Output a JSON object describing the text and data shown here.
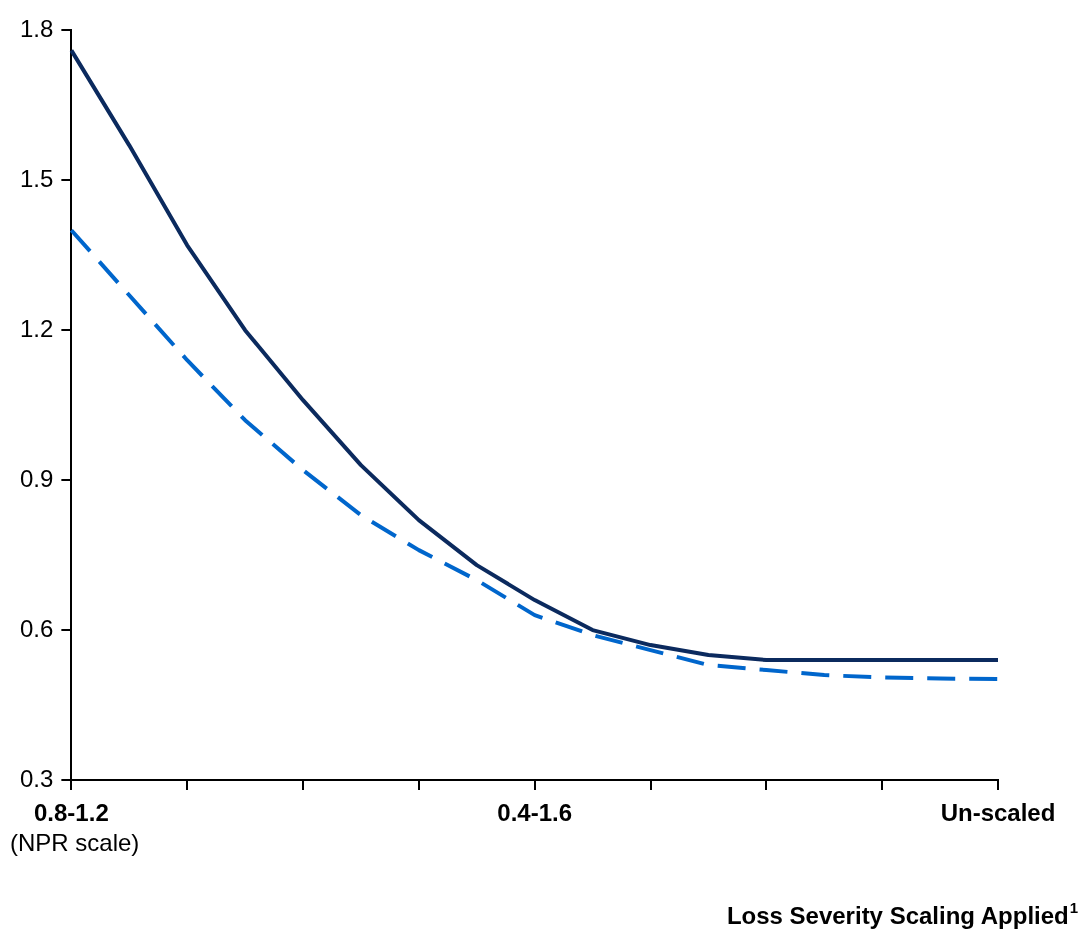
{
  "chart_data": {
    "type": "line",
    "xlabel": "Loss Severity Scaling Applied$^{1}$",
    "categories": [
      "0.8-1.2\n(NPR scale)",
      null,
      null,
      null,
      null,
      null,
      null,
      null,
      "0.4-1.6",
      null,
      null,
      null,
      null,
      null,
      null,
      null,
      "Un-scaled"
    ],
    "ylim": [
      0.3,
      1.8
    ],
    "yticks": [
      0.3,
      0.6,
      0.9,
      1.2,
      1.5,
      1.8
    ],
    "grid": false,
    "legend": false,
    "marker": "none",
    "series": [
      {
        "color": "#0b2a5e",
        "line_style": "solid",
        "values": [
          1.76,
          1.57,
          1.37,
          1.2,
          1.06,
          0.93,
          0.82,
          0.73,
          0.66,
          0.6,
          0.57,
          0.55,
          0.54,
          0.54,
          0.54,
          0.54,
          0.54
        ]
      },
      {
        "color": "#0066cc",
        "line_style": "dashed",
        "values": [
          1.4,
          1.27,
          1.14,
          1.02,
          0.92,
          0.83,
          0.76,
          0.7,
          0.63,
          0.59,
          0.56,
          0.53,
          0.52,
          0.51,
          0.505,
          0.503,
          0.502
        ]
      }
    ]
  }
}
